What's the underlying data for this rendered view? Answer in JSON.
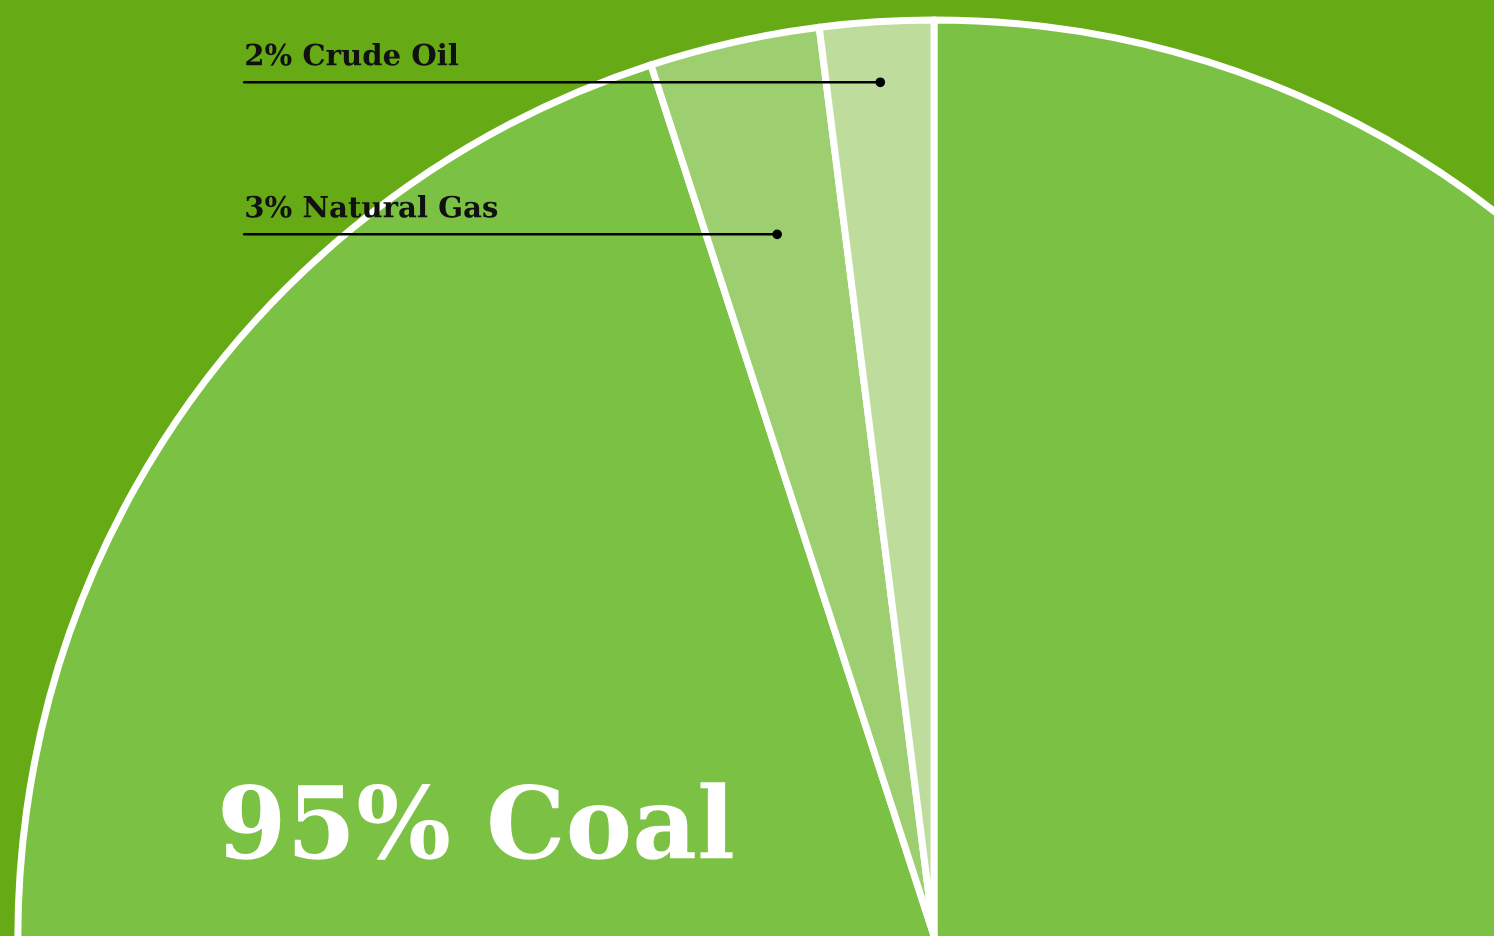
{
  "chart_data": {
    "type": "pie",
    "categories": [
      "Coal",
      "Natural Gas",
      "Crude Oil"
    ],
    "values": [
      95,
      3,
      2
    ],
    "value_labels": [
      "95%",
      "3%",
      "2%"
    ],
    "colors": [
      "#7bc143",
      "#9dcf70",
      "#bedd9d"
    ]
  }
}
